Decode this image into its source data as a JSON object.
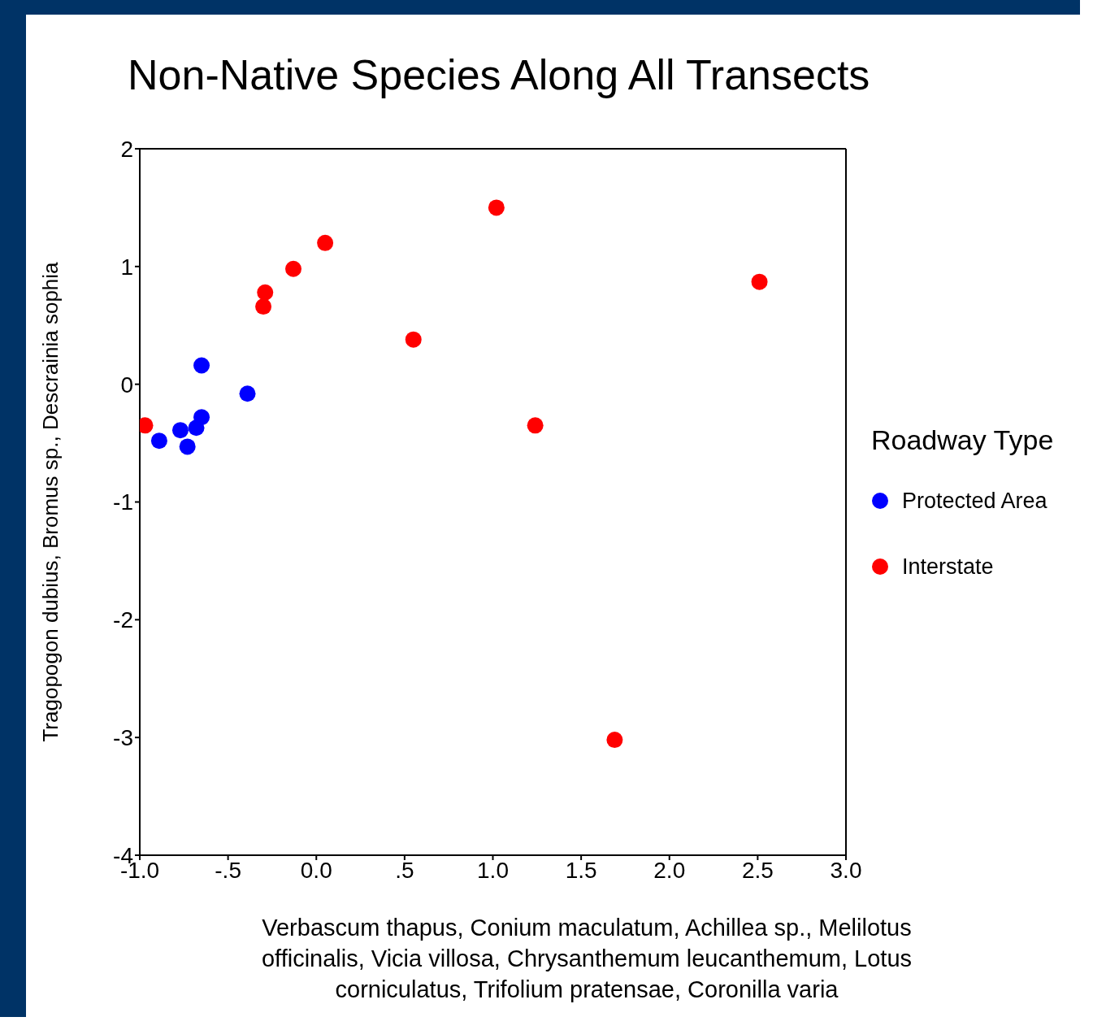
{
  "chart_data": {
    "type": "scatter",
    "title": "Non-Native Species Along All Transects",
    "xlabel": "Verbascum thapus, Conium maculatum, Achillea sp., Melilotus officinalis, Vicia villosa, Chrysanthemum leucanthemum, Lotus corniculatus, Trifolium pratensae, Coronilla varia",
    "ylabel": "Tragopogon dubius, Bromus sp., Descrainia sophia",
    "legend_title": "Roadway Type",
    "legend": "right",
    "marker": "circle",
    "xlim": [
      -1,
      3
    ],
    "xticks": [
      {
        "value": -1,
        "label": "-1.0"
      },
      {
        "value": -0.5,
        "label": "-.5"
      },
      {
        "value": 0,
        "label": "0.0"
      },
      {
        "value": 0.5,
        "label": ".5"
      },
      {
        "value": 1,
        "label": "1.0"
      },
      {
        "value": 1.5,
        "label": "1.5"
      },
      {
        "value": 2,
        "label": "2.0"
      },
      {
        "value": 2.5,
        "label": "2.5"
      },
      {
        "value": 3,
        "label": "3.0"
      }
    ],
    "ylim": [
      -4,
      2
    ],
    "yticks": [
      -4,
      -3,
      -2,
      -1,
      0,
      1,
      2
    ],
    "series": [
      {
        "name": "Protected Area",
        "color": "#0000ff",
        "x": [
          -0.65,
          -0.39,
          -0.65,
          -0.68,
          -0.77,
          -0.73,
          -0.89
        ],
        "values": [
          0.16,
          -0.08,
          -0.28,
          -0.37,
          -0.39,
          -0.53,
          -0.48
        ]
      },
      {
        "name": "Interstate",
        "color": "#ff0000",
        "x": [
          -0.97,
          1.02,
          0.05,
          -0.13,
          -0.29,
          -0.3,
          0.55,
          2.51,
          1.24,
          1.69
        ],
        "values": [
          -0.35,
          1.5,
          1.2,
          0.98,
          0.78,
          0.66,
          0.38,
          0.87,
          -0.35,
          -3.02
        ]
      }
    ]
  }
}
